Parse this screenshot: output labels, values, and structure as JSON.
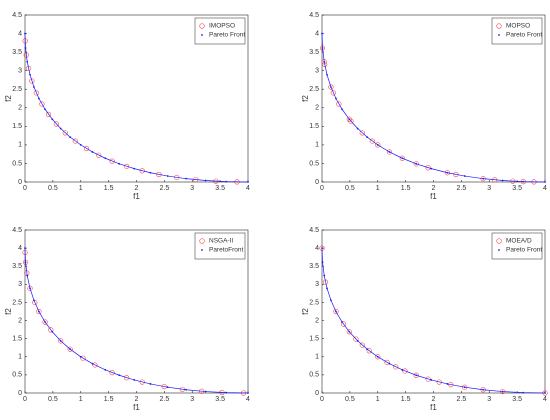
{
  "chart_data": [
    {
      "type": "scatter",
      "xlabel": "f1",
      "ylabel": "f2",
      "xlim": [
        0,
        4
      ],
      "ylim": [
        0,
        4.5
      ],
      "xticks": [
        0,
        0.5,
        1,
        1.5,
        2,
        2.5,
        3,
        3.5,
        4
      ],
      "yticks": [
        0,
        0.5,
        1,
        1.5,
        2,
        2.5,
        3,
        3.5,
        4,
        4.5
      ],
      "legend": "northeast",
      "series": [
        {
          "name": "IMOPSO",
          "color": "#ff4040",
          "marker": "circle",
          "x": [
            0.0025,
            0.0225,
            0.0625,
            0.1225,
            0.2025,
            0.3025,
            0.4225,
            0.5625,
            0.7225,
            0.9025,
            1.1025,
            1.3225,
            1.5625,
            1.8225,
            2.1025,
            2.4025,
            2.7225,
            3.0625,
            3.4225,
            3.8025
          ],
          "values": [
            3.8025,
            3.4225,
            3.0625,
            2.7225,
            2.4025,
            2.1025,
            1.8225,
            1.5625,
            1.3225,
            1.1025,
            0.9025,
            0.7225,
            0.5625,
            0.4225,
            0.3025,
            0.2025,
            0.1225,
            0.0625,
            0.0225,
            0.0025
          ]
        },
        {
          "name": "Pareto Front",
          "color": "#1a1aff",
          "marker": "dot",
          "x": [
            0,
            0.01,
            0.04,
            0.09,
            0.16,
            0.25,
            0.36,
            0.49,
            0.64,
            0.81,
            1,
            1.21,
            1.44,
            1.69,
            1.96,
            2.25,
            2.56,
            2.89,
            3.24,
            3.61,
            4
          ],
          "values": [
            4,
            3.61,
            3.24,
            2.89,
            2.56,
            2.25,
            1.96,
            1.69,
            1.44,
            1.21,
            1,
            0.81,
            0.64,
            0.49,
            0.36,
            0.25,
            0.16,
            0.09,
            0.04,
            0.01,
            0
          ]
        }
      ]
    },
    {
      "type": "scatter",
      "xlabel": "f1",
      "ylabel": "f2",
      "xlim": [
        0,
        4
      ],
      "ylim": [
        0,
        4.5
      ],
      "xticks": [
        0,
        0.5,
        1,
        1.5,
        2,
        2.5,
        3,
        3.5,
        4
      ],
      "yticks": [
        0,
        0.5,
        1,
        1.5,
        2,
        2.5,
        3,
        3.5,
        4,
        4.5
      ],
      "legend": "northeast",
      "series": [
        {
          "name": "MOPSO",
          "color": "#ff4040",
          "marker": "circle",
          "x": [
            0.01,
            0.04,
            0.0484,
            0.16,
            0.2025,
            0.3025,
            0.49,
            0.5184,
            0.7225,
            0.9025,
            1,
            1.21,
            1.44,
            1.69,
            1.9044,
            2.25,
            2.4025,
            2.89,
            3.0976,
            3.4225,
            3.61,
            3.8025
          ],
          "values": [
            3.61,
            3.24,
            3.1684,
            2.56,
            2.4025,
            2.1025,
            1.69,
            1.6384,
            1.3225,
            1.1025,
            1,
            0.81,
            0.64,
            0.49,
            0.3844,
            0.25,
            0.2025,
            0.09,
            0.0576,
            0.0225,
            0.01,
            0.0025
          ]
        },
        {
          "name": "Pareto Front",
          "color": "#1a1aff",
          "marker": "dot",
          "x": [
            0,
            0.01,
            0.04,
            0.09,
            0.16,
            0.25,
            0.36,
            0.49,
            0.64,
            0.81,
            1,
            1.21,
            1.44,
            1.69,
            1.96,
            2.25,
            2.56,
            2.89,
            3.24,
            3.61,
            4
          ],
          "values": [
            4,
            3.61,
            3.24,
            2.89,
            2.56,
            2.25,
            1.96,
            1.69,
            1.44,
            1.21,
            1,
            0.81,
            0.64,
            0.49,
            0.36,
            0.25,
            0.16,
            0.09,
            0.04,
            0.01,
            0
          ]
        }
      ]
    },
    {
      "type": "scatter",
      "xlabel": "f1",
      "ylabel": "f2",
      "xlim": [
        0,
        4
      ],
      "ylim": [
        0,
        4.5
      ],
      "xticks": [
        0,
        0.5,
        1,
        1.5,
        2,
        2.5,
        3,
        3.5,
        4
      ],
      "yticks": [
        0,
        0.5,
        1,
        1.5,
        2,
        2.5,
        3,
        3.5,
        4,
        4.5
      ],
      "legend": "northeast",
      "series": [
        {
          "name": "NSGA-II",
          "color": "#ff4040",
          "marker": "circle",
          "x": [
            0.0009,
            0.01,
            0.0324,
            0.09,
            0.1764,
            0.25,
            0.36,
            0.4624,
            0.64,
            0.81,
            1.0404,
            1.2544,
            1.5625,
            1.8225,
            2.1025,
            2.4964,
            2.8224,
            3.1684,
            3.5344,
            3.9204
          ],
          "values": [
            3.8809,
            3.61,
            3.3124,
            2.89,
            2.4964,
            2.25,
            1.96,
            1.7424,
            1.44,
            1.21,
            0.9604,
            0.7744,
            0.5625,
            0.4225,
            0.3025,
            0.1764,
            0.1024,
            0.0484,
            0.0144,
            0.0004
          ]
        },
        {
          "name": "ParetoFront",
          "color": "#1a1aff",
          "marker": "dot",
          "x": [
            0,
            0.01,
            0.04,
            0.09,
            0.16,
            0.25,
            0.36,
            0.49,
            0.64,
            0.81,
            1,
            1.21,
            1.44,
            1.69,
            1.96,
            2.25,
            2.56,
            2.89,
            3.24,
            3.61,
            4
          ],
          "values": [
            4,
            3.61,
            3.24,
            2.89,
            2.56,
            2.25,
            1.96,
            1.69,
            1.44,
            1.21,
            1,
            0.81,
            0.64,
            0.49,
            0.36,
            0.25,
            0.16,
            0.09,
            0.04,
            0.01,
            0
          ]
        }
      ]
    },
    {
      "type": "scatter",
      "xlabel": "f1",
      "ylabel": "f2",
      "xlim": [
        0,
        4
      ],
      "ylim": [
        0,
        4.5
      ],
      "xticks": [
        0,
        0.5,
        1,
        1.5,
        2,
        2.5,
        3,
        3.5,
        4
      ],
      "yticks": [
        0,
        0.5,
        1,
        1.5,
        2,
        2.5,
        3,
        3.5,
        4,
        4.5
      ],
      "legend": "northeast",
      "series": [
        {
          "name": "MOEA/D",
          "color": "#ff4040",
          "marker": "circle",
          "x": [
            0,
            0.0625,
            0.25,
            0.3844,
            0.49,
            0.6084,
            0.7225,
            0.8464,
            1,
            1.1664,
            1.3225,
            1.4884,
            1.69,
            1.9044,
            2.1025,
            2.3104,
            2.56,
            2.89,
            3.24,
            4
          ],
          "values": [
            4,
            3.0625,
            2.25,
            1.9044,
            1.69,
            1.4884,
            1.3225,
            1.1664,
            1,
            0.8464,
            0.7225,
            0.6084,
            0.49,
            0.3844,
            0.3025,
            0.2304,
            0.16,
            0.09,
            0.04,
            0
          ]
        },
        {
          "name": "Pareto Front",
          "color": "#1a1aff",
          "marker": "dot",
          "x": [
            0,
            0.01,
            0.04,
            0.09,
            0.16,
            0.25,
            0.36,
            0.49,
            0.64,
            0.81,
            1,
            1.21,
            1.44,
            1.69,
            1.96,
            2.25,
            2.56,
            2.89,
            3.24,
            3.61,
            4
          ],
          "values": [
            4,
            3.61,
            3.24,
            2.89,
            2.56,
            2.25,
            1.96,
            1.69,
            1.44,
            1.21,
            1,
            0.81,
            0.64,
            0.49,
            0.36,
            0.25,
            0.16,
            0.09,
            0.04,
            0.01,
            0
          ]
        }
      ]
    }
  ]
}
